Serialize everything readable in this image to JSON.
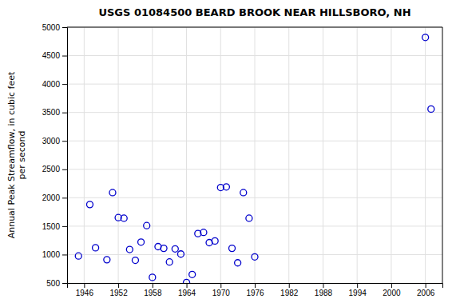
{
  "chart_data": {
    "type": "scatter",
    "title": "USGS 01084500 BEARD BROOK NEAR HILLSBORO, NH",
    "y_label": "Annual Peak Streamflow, in cubic feet\nper second",
    "x": [
      1945,
      1947,
      1948,
      1950,
      1951,
      1952,
      1953,
      1954,
      1955,
      1956,
      1957,
      1958,
      1959,
      1960,
      1961,
      1962,
      1963,
      1964,
      1965,
      1966,
      1967,
      1968,
      1969,
      1970,
      1971,
      1972,
      1973,
      1974,
      1975,
      1976,
      2006,
      2007
    ],
    "values": [
      975,
      1880,
      1120,
      910,
      2090,
      1650,
      1640,
      1090,
      900,
      1220,
      1510,
      600,
      1140,
      1110,
      870,
      1100,
      1010,
      510,
      650,
      1370,
      1390,
      1210,
      1240,
      2180,
      2190,
      1110,
      855,
      2090,
      1640,
      960,
      4820,
      3560
    ],
    "color": "#0000cc",
    "marker": "circle-open",
    "xlim": [
      1943,
      2009
    ],
    "ylim": [
      500,
      5000
    ],
    "xticks": [
      1946,
      1952,
      1958,
      1964,
      1970,
      1976,
      1982,
      1988,
      1994,
      2000,
      2006
    ],
    "yticks": [
      500,
      1000,
      1500,
      2000,
      2500,
      3000,
      3500,
      4000,
      4500,
      5000
    ],
    "grid": true
  }
}
